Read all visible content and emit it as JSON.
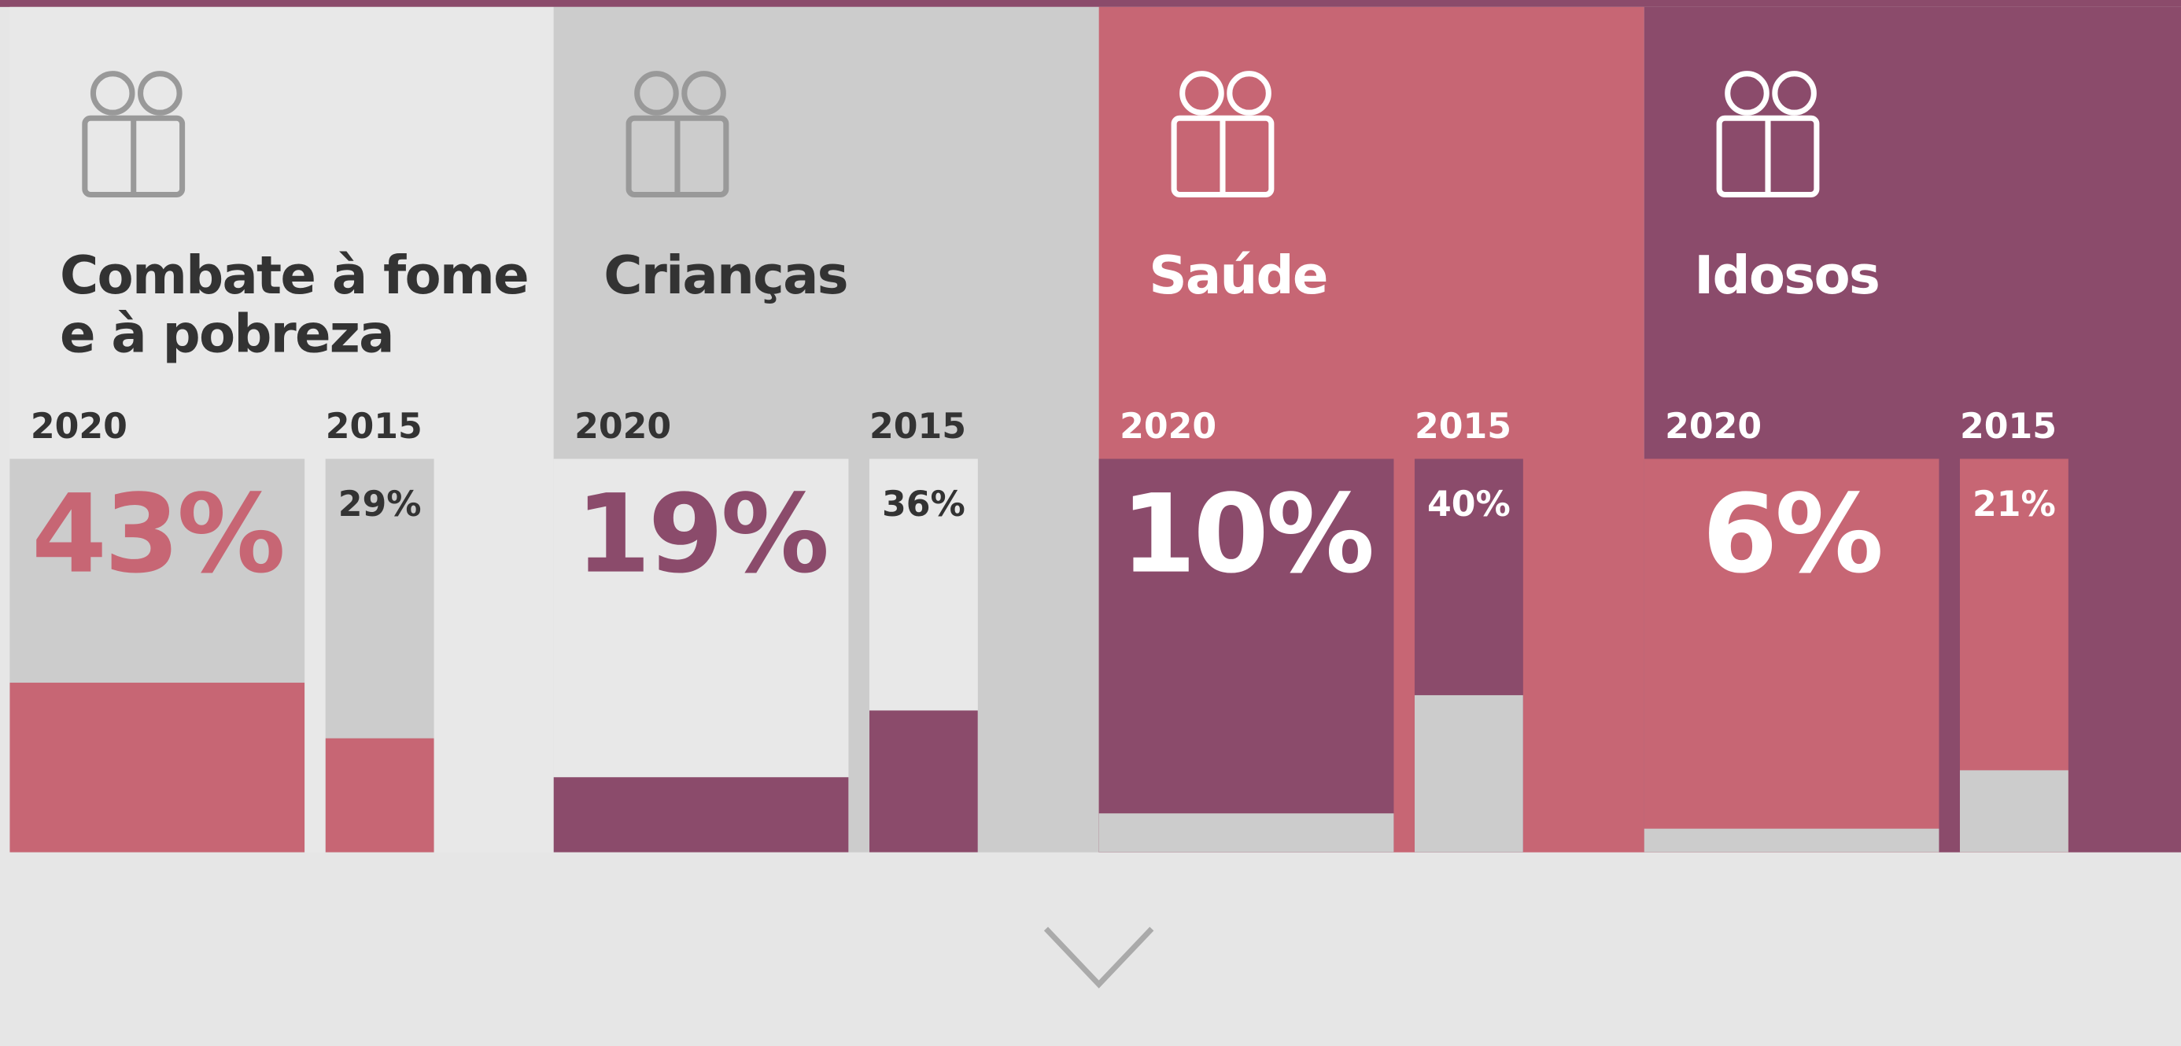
{
  "ylim": [
    0,
    100
  ],
  "panels": [
    {
      "title": "Combate à fome e à pobreza",
      "years": [
        "2020",
        "2015"
      ],
      "values": [
        43,
        29
      ],
      "value_labels": [
        "43%",
        "29%"
      ]
    },
    {
      "title": "Crianças",
      "years": [
        "2020",
        "2015"
      ],
      "values": [
        19,
        36
      ],
      "value_labels": [
        "19%",
        "36%"
      ]
    },
    {
      "title": "Saúde",
      "years": [
        "2020",
        "2015"
      ],
      "values": [
        10,
        40
      ],
      "value_labels": [
        "10%",
        "40%"
      ]
    },
    {
      "title": "Idosos",
      "years": [
        "2020",
        "2015"
      ],
      "values": [
        6,
        21
      ],
      "value_labels": [
        "6%",
        "21%"
      ]
    }
  ]
}
